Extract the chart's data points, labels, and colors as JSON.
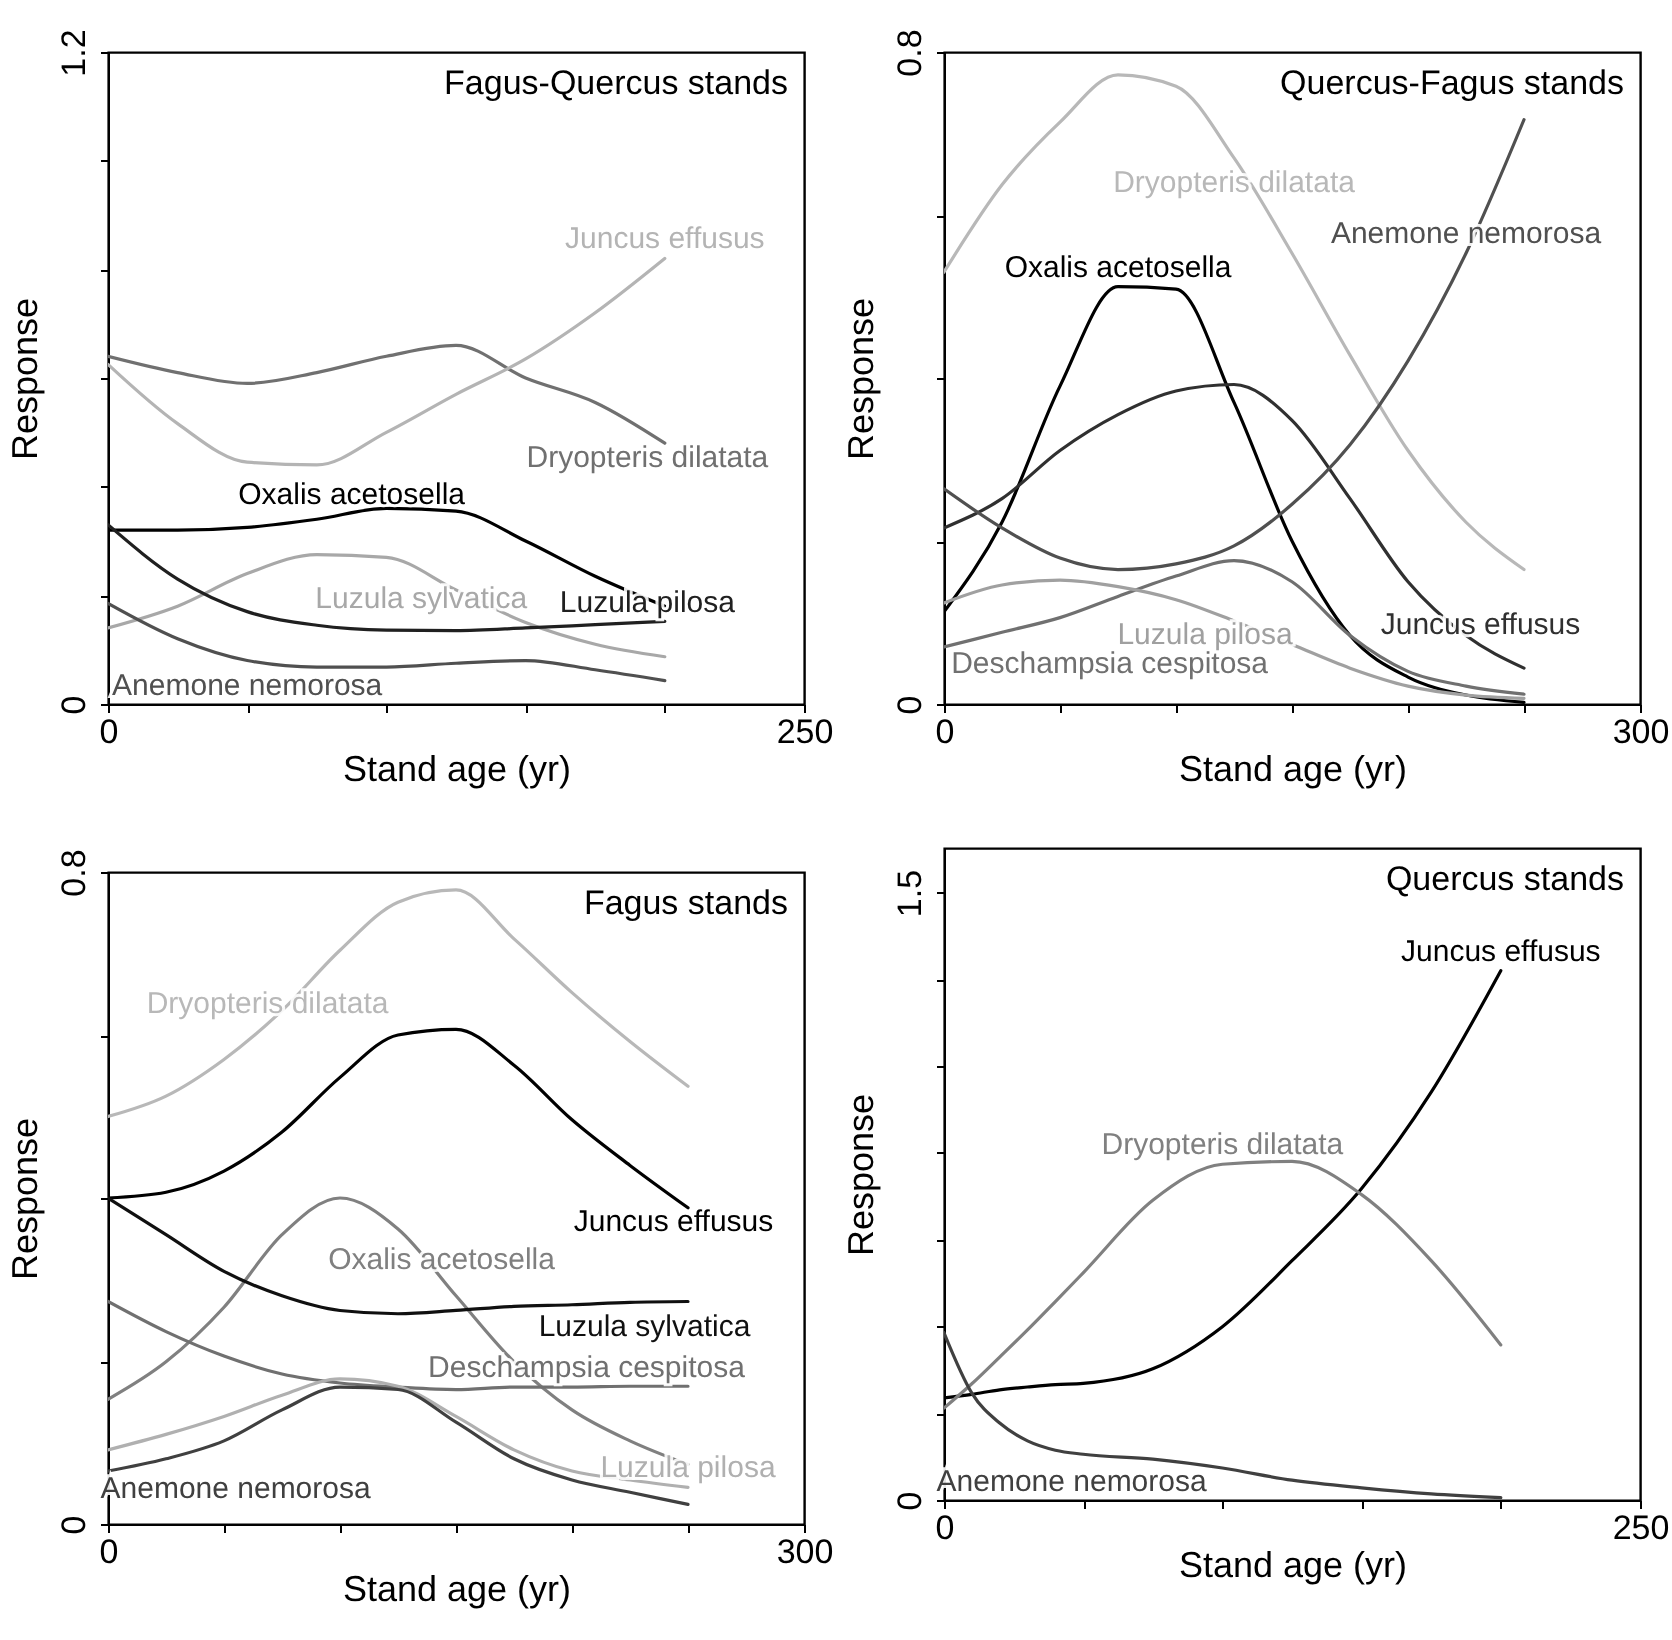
{
  "chart_data": [
    {
      "type": "line",
      "title": "Fagus-Quercus stands",
      "xlabel": "Stand age (yr)",
      "ylabel": "Response",
      "xlim": [
        0,
        250
      ],
      "ylim": [
        0,
        1.2
      ],
      "xticks": [
        0,
        {
          "value": 50,
          "label": null
        },
        {
          "value": 100,
          "label": null
        },
        {
          "value": 150,
          "label": null
        },
        {
          "value": 200,
          "label": null
        },
        250
      ],
      "yticks": [
        0,
        {
          "value": 0.2,
          "label": null
        },
        {
          "value": 0.4,
          "label": null
        },
        {
          "value": 0.6,
          "label": null
        },
        {
          "value": 0.8,
          "label": null
        },
        {
          "value": 1,
          "label": null
        },
        1.2
      ],
      "x": [
        0,
        25,
        50,
        75,
        100,
        125,
        150,
        175,
        200
      ],
      "series": [
        {
          "name": "Dryopteris dilatata",
          "color": "#707070",
          "values": [
            0.64,
            0.61,
            0.59,
            0.61,
            0.64,
            0.66,
            0.6,
            0.555,
            0.48
          ]
        },
        {
          "name": "Juncus effusus",
          "color": "#b4b4b4",
          "values": [
            0.625,
            0.516,
            0.445,
            0.44,
            0.5,
            0.57,
            0.635,
            0.72,
            0.82
          ]
        },
        {
          "name": "Oxalis acetosella",
          "color": "#000000",
          "values": [
            0.32,
            0.32,
            0.325,
            0.34,
            0.36,
            0.355,
            0.3,
            0.235,
            0.18
          ]
        },
        {
          "name": "Luzula sylvatica",
          "color": "#a8a8a8",
          "values": [
            0.14,
            0.18,
            0.24,
            0.275,
            0.27,
            0.21,
            0.15,
            0.11,
            0.087
          ]
        },
        {
          "name": "Luzula pilosa",
          "color": "#202020",
          "values": [
            0.33,
            0.23,
            0.17,
            0.145,
            0.136,
            0.135,
            0.14,
            0.146,
            0.152
          ]
        },
        {
          "name": "Anemone nemorosa",
          "color": "#505050",
          "values": [
            0.185,
            0.12,
            0.08,
            0.068,
            0.068,
            0.075,
            0.08,
            0.063,
            0.043
          ]
        }
      ]
    },
    {
      "type": "line",
      "title": "Quercus-Fagus stands",
      "xlabel": "Stand age (yr)",
      "ylabel": "Response",
      "xlim": [
        0,
        300
      ],
      "ylim": [
        0,
        0.8
      ],
      "xticks": [
        0,
        {
          "value": 50,
          "label": null
        },
        {
          "value": 100,
          "label": null
        },
        {
          "value": 150,
          "label": null
        },
        {
          "value": 200,
          "label": null
        },
        {
          "value": 250,
          "label": null
        },
        300
      ],
      "yticks": [
        0,
        {
          "value": 0.2,
          "label": null
        },
        {
          "value": 0.4,
          "label": null
        },
        {
          "value": 0.6,
          "label": null
        },
        0.8
      ],
      "x": [
        0,
        25,
        50,
        75,
        100,
        125,
        150,
        175,
        200,
        225,
        250
      ],
      "series": [
        {
          "name": "Dryopteris dilatata",
          "color": "#b8b8b8",
          "values": [
            0.53,
            0.637,
            0.714,
            0.772,
            0.758,
            0.67,
            0.553,
            0.428,
            0.311,
            0.223,
            0.165
          ]
        },
        {
          "name": "Oxalis acetosella",
          "color": "#000000",
          "values": [
            0.113,
            0.223,
            0.39,
            0.512,
            0.509,
            0.37,
            0.2,
            0.084,
            0.033,
            0.011,
            0.002
          ]
        },
        {
          "name": "Juncus effusus",
          "color": "#303030",
          "values": [
            0.216,
            0.252,
            0.311,
            0.355,
            0.384,
            0.392,
            0.348,
            0.252,
            0.15,
            0.084,
            0.044
          ]
        },
        {
          "name": "Anemone nemorosa",
          "color": "#505050",
          "values": [
            0.264,
            0.216,
            0.179,
            0.165,
            0.172,
            0.194,
            0.245,
            0.318,
            0.421,
            0.553,
            0.717
          ]
        },
        {
          "name": "Deschampsia cespitosa",
          "color": "#707070",
          "values": [
            0.07,
            0.088,
            0.106,
            0.132,
            0.157,
            0.176,
            0.15,
            0.084,
            0.04,
            0.022,
            0.012
          ]
        },
        {
          "name": "Luzula pilosa",
          "color": "#a0a0a0",
          "values": [
            0.124,
            0.146,
            0.152,
            0.144,
            0.128,
            0.102,
            0.073,
            0.044,
            0.022,
            0.011,
            0.007
          ]
        }
      ]
    },
    {
      "type": "line",
      "title": "Fagus stands",
      "xlabel": "Stand age (yr)",
      "ylabel": "Response",
      "xlim": [
        0,
        300
      ],
      "ylim": [
        0,
        0.8
      ],
      "xticks": [
        0,
        {
          "value": 50,
          "label": null
        },
        {
          "value": 100,
          "label": null
        },
        {
          "value": 150,
          "label": null
        },
        {
          "value": 200,
          "label": null
        },
        {
          "value": 250,
          "label": null
        },
        300
      ],
      "yticks": [
        0,
        {
          "value": 0.2,
          "label": null
        },
        {
          "value": 0.4,
          "label": null
        },
        {
          "value": 0.6,
          "label": null
        },
        0.8
      ],
      "x": [
        0,
        25,
        50,
        75,
        100,
        125,
        150,
        175,
        200,
        225,
        250
      ],
      "series": [
        {
          "name": "Dryopteris dilatata",
          "color": "#b8b8b8",
          "values": [
            0.5,
            0.525,
            0.57,
            0.63,
            0.704,
            0.763,
            0.778,
            0.718,
            0.652,
            0.592,
            0.537
          ]
        },
        {
          "name": "Juncus effusus",
          "color": "#000000",
          "values": [
            0.4,
            0.407,
            0.433,
            0.481,
            0.548,
            0.6,
            0.607,
            0.563,
            0.496,
            0.44,
            0.388
          ]
        },
        {
          "name": "Oxalis acetosella",
          "color": "#808080",
          "values": [
            0.153,
            0.199,
            0.266,
            0.355,
            0.4,
            0.362,
            0.28,
            0.199,
            0.14,
            0.102,
            0.073
          ]
        },
        {
          "name": "Luzula sylvatica",
          "color": "#101010",
          "values": [
            0.4,
            0.355,
            0.31,
            0.28,
            0.262,
            0.258,
            0.262,
            0.267,
            0.269,
            0.272,
            0.273
          ]
        },
        {
          "name": "Deschampsia cespitosa",
          "color": "#707070",
          "values": [
            0.273,
            0.236,
            0.206,
            0.184,
            0.173,
            0.168,
            0.165,
            0.168,
            0.168,
            0.169,
            0.169
          ]
        },
        {
          "name": "Luzula pilosa",
          "color": "#b0b0b0",
          "values": [
            0.091,
            0.11,
            0.132,
            0.158,
            0.178,
            0.169,
            0.132,
            0.091,
            0.065,
            0.054,
            0.045
          ]
        },
        {
          "name": "Anemone nemorosa",
          "color": "#404040",
          "values": [
            0.065,
            0.08,
            0.102,
            0.14,
            0.168,
            0.165,
            0.125,
            0.08,
            0.054,
            0.039,
            0.024
          ]
        }
      ]
    },
    {
      "type": "line",
      "title": "Quercus stands",
      "xlabel": "Stand age (yr)",
      "ylabel": "Response",
      "xlim": [
        0,
        250
      ],
      "ylim": [
        0,
        1.61
      ],
      "xticks": [
        0,
        {
          "value": 50,
          "label": null
        },
        {
          "value": 100,
          "label": null
        },
        {
          "value": 150,
          "label": null
        },
        {
          "value": 200,
          "label": null
        },
        250
      ],
      "yticks": [
        0,
        {
          "value": 0.2143,
          "label": null
        },
        {
          "value": 0.4286,
          "label": null
        },
        {
          "value": 0.6429,
          "label": null
        },
        {
          "value": 0.8571,
          "label": null
        },
        {
          "value": 1.0714,
          "label": null
        },
        {
          "value": 1.2857,
          "label": null
        },
        1.5
      ],
      "x": [
        0,
        10,
        20,
        30,
        40,
        50,
        75,
        100,
        125,
        150,
        175,
        200
      ],
      "series": [
        {
          "name": "Juncus effusus",
          "color": "#000000",
          "values": [
            0.252,
            0.261,
            0.272,
            0.279,
            0.285,
            0.288,
            0.324,
            0.428,
            0.591,
            0.769,
            1.007,
            1.307
          ]
        },
        {
          "name": "Dryopteris dilatata",
          "color": "#808080",
          "values": [
            0.227,
            0.287,
            0.353,
            0.42,
            0.49,
            0.561,
            0.74,
            0.829,
            0.836,
            0.754,
            0.591,
            0.383
          ]
        },
        {
          "name": "Anemone nemorosa",
          "color": "#404040",
          "values": [
            0.413,
            0.264,
            0.19,
            0.146,
            0.123,
            0.113,
            0.101,
            0.079,
            0.049,
            0.03,
            0.015,
            0.006
          ]
        }
      ]
    }
  ]
}
